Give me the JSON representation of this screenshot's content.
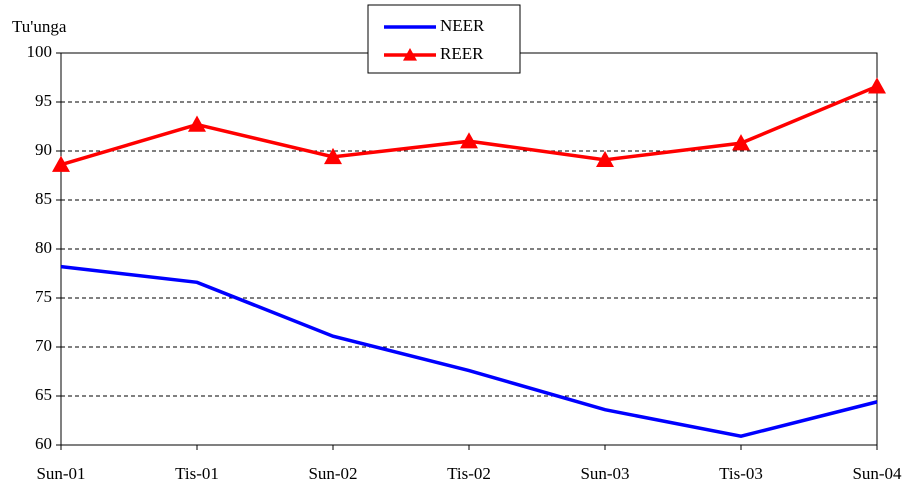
{
  "chart_data": {
    "type": "line",
    "y_label": "Tu'unga",
    "categories": [
      "Sun-01",
      "Tis-01",
      "Sun-02",
      "Tis-02",
      "Sun-03",
      "Tis-03",
      "Sun-04"
    ],
    "series": [
      {
        "name": "NEER",
        "color": "#0000ff",
        "values": [
          78.2,
          76.6,
          71.1,
          67.6,
          63.6,
          60.9,
          64.4
        ]
      },
      {
        "name": "REER",
        "color": "#ff0000",
        "marker": "triangle",
        "values": [
          88.6,
          92.7,
          89.4,
          91.0,
          89.1,
          90.8,
          96.6
        ]
      }
    ],
    "ylim": [
      60,
      100
    ],
    "yticks": [
      60,
      65,
      70,
      75,
      80,
      85,
      90,
      95,
      100
    ],
    "grid": true,
    "legend": "top"
  }
}
